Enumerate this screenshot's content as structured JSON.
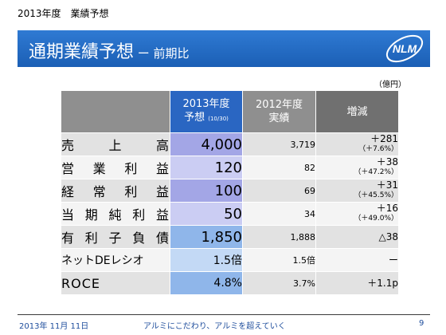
{
  "header": {
    "top_label": "2013年度　業績予想",
    "title": "通期業績予想",
    "subtitle": " ー 前期比",
    "logo_text": "NLM"
  },
  "unit": "（億円）",
  "columns": {
    "forecast_line1": "2013年度",
    "forecast_line2": "予想",
    "forecast_note": "(10/30)",
    "actual_line1": "2012年度",
    "actual_line2": "実績",
    "change": "増減"
  },
  "rows": [
    {
      "label": "売上高",
      "forecast": "4,000",
      "actual": "3,719",
      "change": "＋281",
      "change_pct": "（＋7.6%）"
    },
    {
      "label": "営業利益",
      "forecast": "120",
      "actual": "82",
      "change": "＋38",
      "change_pct": "（＋47.2%）"
    },
    {
      "label": "経常利益",
      "forecast": "100",
      "actual": "69",
      "change": "＋31",
      "change_pct": "（＋45.5%）"
    },
    {
      "label": "当期純利益",
      "forecast": "50",
      "actual": "34",
      "change": "＋16",
      "change_pct": "（＋49.0%）"
    },
    {
      "label": "有利子負債",
      "forecast": "1,850",
      "actual": "1,888",
      "change": "△38",
      "change_pct": ""
    },
    {
      "label": "ネットDEレシオ",
      "forecast": "1.5倍",
      "actual": "1.5倍",
      "change": "ー",
      "change_pct": ""
    },
    {
      "label": "ROCE",
      "forecast": "4.8%",
      "actual": "3.7%",
      "change": "＋1.1p",
      "change_pct": ""
    }
  ],
  "colors": {
    "forecast_cells": [
      "#a3a6e6",
      "#cbcdf3",
      "#a3a6e6",
      "#cbcdf3",
      "#8fb6ea",
      "#c3d9f5",
      "#8fb6ea"
    ]
  },
  "footer": {
    "date": "2013年 11月 11日",
    "slogan": "アルミにこだわり、アルミを超えていく",
    "page": "9"
  }
}
